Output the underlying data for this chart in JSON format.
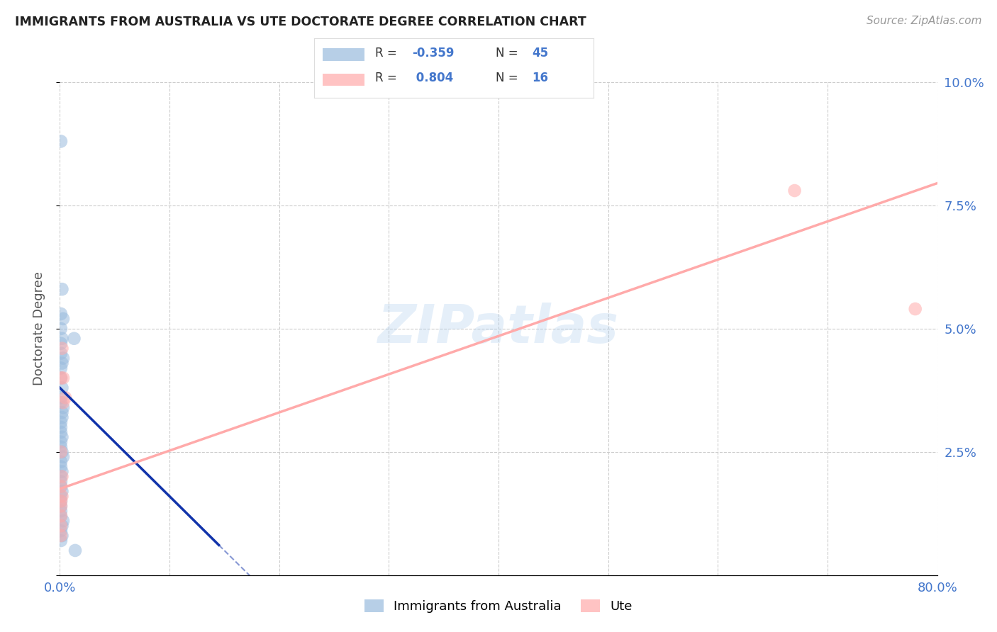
{
  "title": "IMMIGRANTS FROM AUSTRALIA VS UTE DOCTORATE DEGREE CORRELATION CHART",
  "source": "Source: ZipAtlas.com",
  "xlim": [
    0.0,
    0.8
  ],
  "ylim": [
    0.0,
    0.1
  ],
  "ylabel": "Doctorate Degree",
  "watermark": "ZIPatlas",
  "legend_blue_R": "-0.359",
  "legend_blue_N": "45",
  "legend_pink_R": "0.804",
  "legend_pink_N": "16",
  "blue_color": "#99BBDD",
  "pink_color": "#FFAAAA",
  "trendline_blue": "#1133AA",
  "trendline_pink": "#FF6688",
  "blue_x": [
    0.001,
    0.002,
    0.001,
    0.003,
    0.001,
    0.002,
    0.001,
    0.001,
    0.003,
    0.002,
    0.001,
    0.001,
    0.002,
    0.001,
    0.001,
    0.003,
    0.002,
    0.002,
    0.001,
    0.001,
    0.001,
    0.002,
    0.001,
    0.001,
    0.002,
    0.003,
    0.001,
    0.001,
    0.002,
    0.001,
    0.001,
    0.001,
    0.002,
    0.001,
    0.001,
    0.001,
    0.013,
    0.001,
    0.001,
    0.003,
    0.002,
    0.001,
    0.002,
    0.001,
    0.014
  ],
  "blue_y": [
    0.088,
    0.058,
    0.053,
    0.052,
    0.05,
    0.048,
    0.047,
    0.045,
    0.044,
    0.043,
    0.042,
    0.04,
    0.038,
    0.036,
    0.035,
    0.034,
    0.033,
    0.032,
    0.031,
    0.03,
    0.029,
    0.028,
    0.027,
    0.026,
    0.025,
    0.024,
    0.023,
    0.022,
    0.021,
    0.02,
    0.019,
    0.018,
    0.017,
    0.016,
    0.015,
    0.014,
    0.048,
    0.013,
    0.012,
    0.011,
    0.01,
    0.009,
    0.008,
    0.007,
    0.005
  ],
  "pink_x": [
    0.001,
    0.001,
    0.002,
    0.001,
    0.001,
    0.003,
    0.002,
    0.005,
    0.001,
    0.001,
    0.002,
    0.001,
    0.003,
    0.001,
    0.67,
    0.78
  ],
  "pink_y": [
    0.012,
    0.01,
    0.046,
    0.04,
    0.025,
    0.035,
    0.02,
    0.036,
    0.008,
    0.014,
    0.016,
    0.018,
    0.04,
    0.015,
    0.078,
    0.054
  ],
  "blue_trend_x0": 0.0,
  "blue_trend_x1": 0.145,
  "blue_trend_y_intercept": 0.038,
  "blue_trend_slope": -0.22,
  "blue_trend_ext_x0": 0.145,
  "blue_trend_ext_x1": 0.22,
  "pink_trend_x0": 0.0,
  "pink_trend_x1": 0.8,
  "pink_trend_y_intercept": 0.0175,
  "pink_trend_slope": 0.0775
}
